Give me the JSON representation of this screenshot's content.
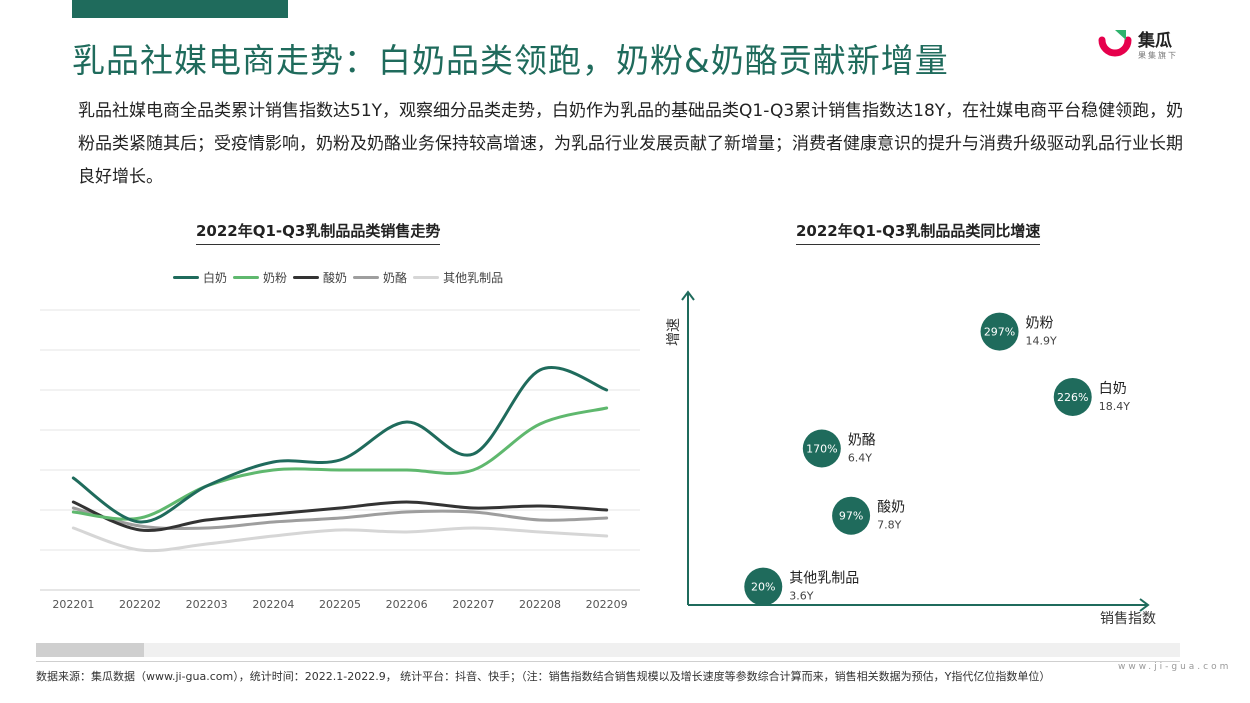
{
  "header": {
    "title": "乳品社媒电商走势：白奶品类领跑，奶粉&奶酪贡献新增量"
  },
  "logo": {
    "name": "集瓜",
    "slogan": "果集旗下",
    "icon": "jigua-logo-icon",
    "colors": [
      "#e6004c",
      "#2fb36d"
    ]
  },
  "intro": "乳品社媒电商全品类累计销售指数达51Y，观察细分品类走势，白奶作为乳品的基础品类Q1-Q3累计销售指数达18Y，在社媒电商平台稳健领跑，奶粉品类紧随其后；受疫情影响，奶粉及奶酪业务保持较高增速，为乳品行业发展贡献了新增量；消费者健康意识的提升与消费升级驱动乳品行业长期良好增长。",
  "chart_data": [
    {
      "type": "line",
      "title": "2022年Q1-Q3乳制品品类销售走势",
      "x": [
        "202201",
        "202202",
        "202203",
        "202204",
        "202205",
        "202206",
        "202207",
        "202208",
        "202209"
      ],
      "legend_position": "top-left",
      "grid": true,
      "y_ticks_visible": false,
      "ylim": [
        0,
        14
      ],
      "series": [
        {
          "name": "白奶",
          "color": "#1f6b5c",
          "values": [
            5.6,
            3.4,
            5.2,
            6.4,
            6.5,
            8.4,
            6.8,
            11.0,
            10.0
          ]
        },
        {
          "name": "奶粉",
          "color": "#5fb86e",
          "values": [
            3.9,
            3.6,
            5.2,
            6.0,
            6.0,
            6.0,
            6.0,
            8.3,
            9.1
          ]
        },
        {
          "name": "酸奶",
          "color": "#333333",
          "values": [
            4.4,
            3.0,
            3.5,
            3.8,
            4.1,
            4.4,
            4.1,
            4.2,
            4.0
          ]
        },
        {
          "name": "奶酪",
          "color": "#9e9e9e",
          "values": [
            4.1,
            3.2,
            3.1,
            3.4,
            3.6,
            3.9,
            3.9,
            3.5,
            3.6
          ]
        },
        {
          "name": "其他乳制品",
          "color": "#d6d6d6",
          "values": [
            3.1,
            2.0,
            2.3,
            2.7,
            3.0,
            2.9,
            3.1,
            2.9,
            2.7
          ]
        }
      ]
    },
    {
      "type": "scatter",
      "title": "2022年Q1-Q3乳制品品类同比增速",
      "xlabel": "销售指数",
      "ylabel": "增速",
      "color": "#1f6b5c",
      "xlim": [
        0,
        22
      ],
      "ylim": [
        0,
        340
      ],
      "points": [
        {
          "name": "奶粉",
          "x": 14.9,
          "y": 297,
          "value_label": "14.9Y",
          "growth_label": "297%"
        },
        {
          "name": "白奶",
          "x": 18.4,
          "y": 226,
          "value_label": "18.4Y",
          "growth_label": "226%"
        },
        {
          "name": "奶酪",
          "x": 6.4,
          "y": 170,
          "value_label": "6.4Y",
          "growth_label": "170%"
        },
        {
          "name": "酸奶",
          "x": 7.8,
          "y": 97,
          "value_label": "7.8Y",
          "growth_label": "97%"
        },
        {
          "name": "其他乳制品",
          "x": 3.6,
          "y": 20,
          "value_label": "3.6Y",
          "growth_label": "20%"
        }
      ]
    }
  ],
  "footer": {
    "source": "数据来源：集瓜数据（www.ji-gua.com），统计时间：2022.1-2022.9，  统计平台：抖音、快手；（注：销售指数结合销售规模以及增长速度等参数综合计算而来，销售相关数据为预估，Y指代亿位指数单位）",
    "url": "www.ji-gua.com"
  }
}
